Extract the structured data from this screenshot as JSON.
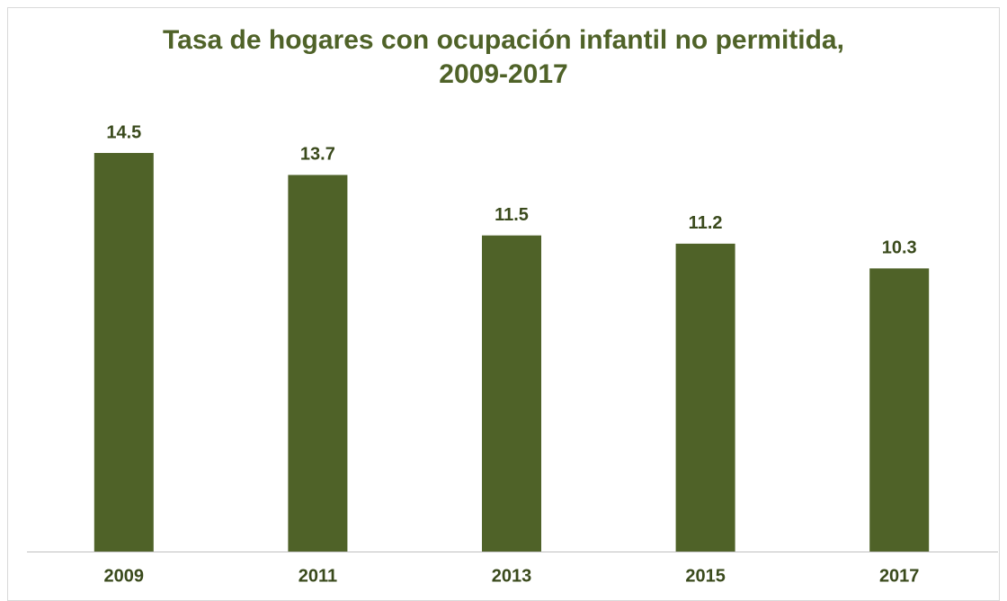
{
  "chart_data": {
    "type": "bar",
    "title": "Tasa de hogares con ocupación infantil no permitida, 2009-2017",
    "categories": [
      "2009",
      "2011",
      "2013",
      "2015",
      "2017"
    ],
    "values": [
      14.5,
      13.7,
      11.5,
      11.2,
      10.3
    ],
    "color": "#4f6228"
  }
}
